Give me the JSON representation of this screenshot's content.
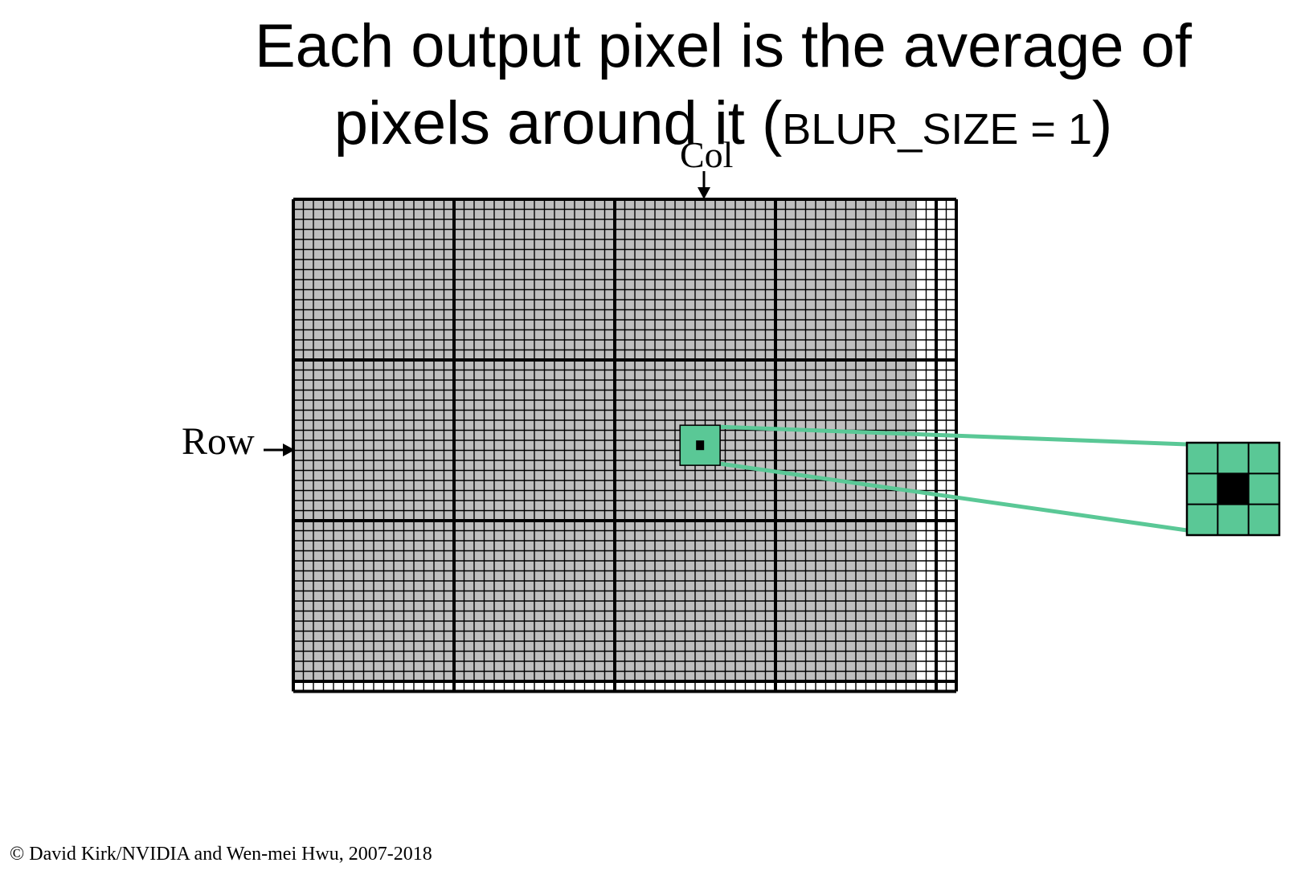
{
  "title": {
    "line1": "Each output pixel is the average of",
    "line2_main": "pixels around it (",
    "line2_param": "BLUR_SIZE = 1",
    "line2_close": ")"
  },
  "labels": {
    "col": "Col",
    "row": "Row"
  },
  "copyright": "© David Kirk/NVIDIA and Wen-mei Hwu, 2007-2018",
  "diagram": {
    "image_cols": 62,
    "image_rows": 48,
    "tile_size": 16,
    "tile_grid_cols": 4,
    "tile_grid_rows": 3,
    "blur_size": 1,
    "patch_size": 3,
    "colors": {
      "image_fill": "#bfbfbf",
      "padding_fill": "#ffffff",
      "grid_line": "#000000",
      "patch_fill": "#5ac896",
      "center_pixel": "#000000"
    }
  }
}
